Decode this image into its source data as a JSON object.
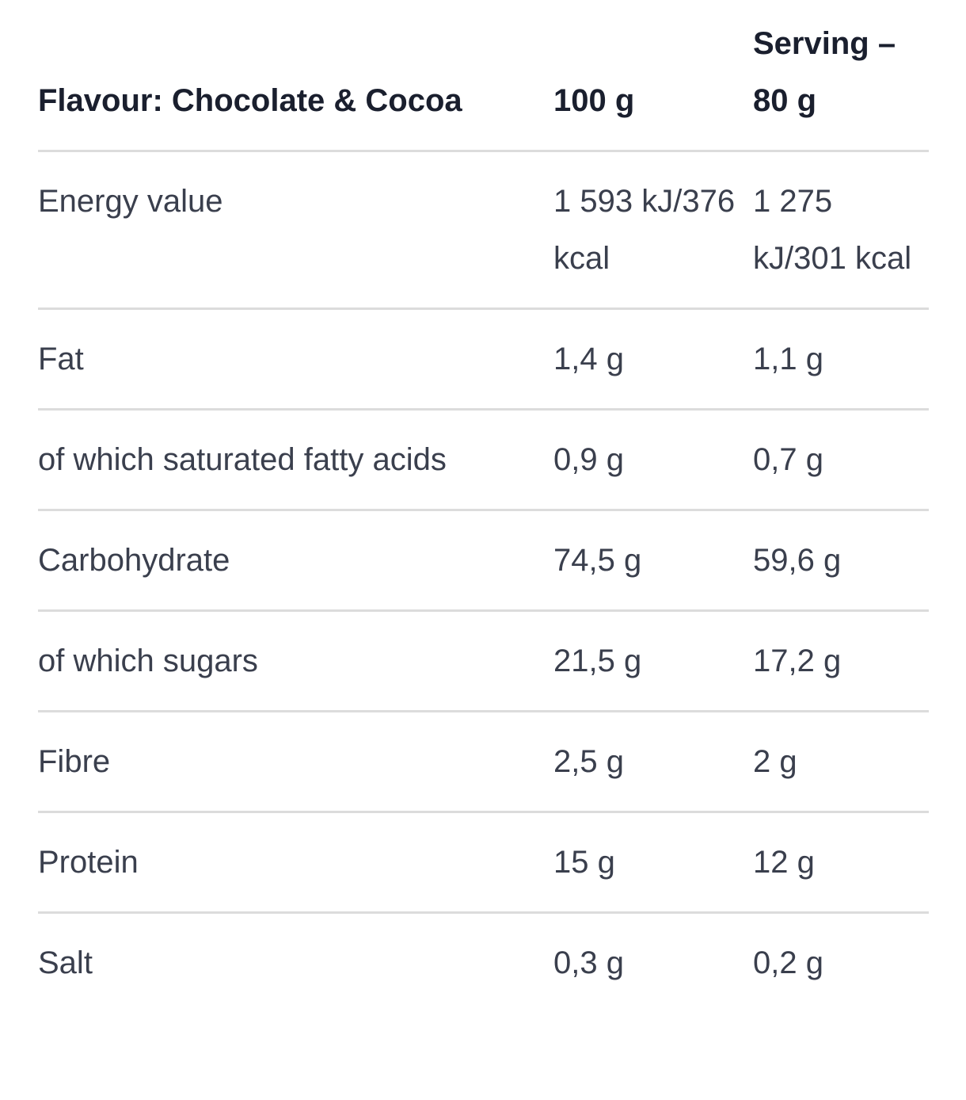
{
  "table": {
    "header": {
      "name": "Flavour: Chocolate & Cocoa",
      "col_100g": "100 g",
      "col_serving": "Serving – 80 g"
    },
    "rows": [
      {
        "name": "Energy value",
        "per_100g": "1 593 kJ/376 kcal",
        "per_serving": "1 275 kJ/301 kcal"
      },
      {
        "name": "Fat",
        "per_100g": "1,4 g",
        "per_serving": "1,1 g"
      },
      {
        "name": "of which saturated fatty acids",
        "per_100g": "0,9 g",
        "per_serving": "0,7 g"
      },
      {
        "name": "Carbohydrate",
        "per_100g": "74,5 g",
        "per_serving": "59,6 g"
      },
      {
        "name": "of which sugars",
        "per_100g": "21,5 g",
        "per_serving": "17,2 g"
      },
      {
        "name": "Fibre",
        "per_100g": "2,5 g",
        "per_serving": "2 g"
      },
      {
        "name": "Protein",
        "per_100g": "15 g",
        "per_serving": "12 g"
      },
      {
        "name": "Salt",
        "per_100g": "0,3 g",
        "per_serving": "0,2 g"
      }
    ]
  }
}
